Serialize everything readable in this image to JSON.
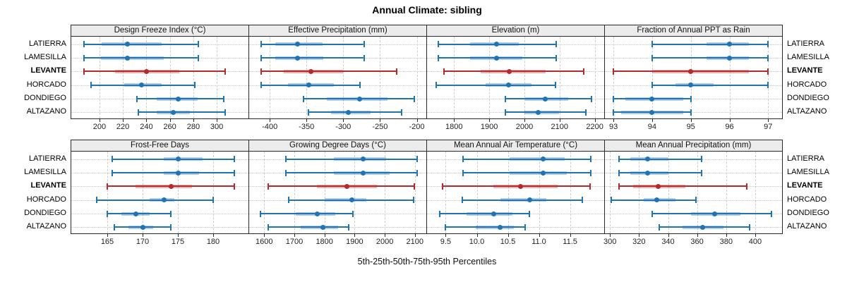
{
  "title": "Annual Climate: sibling",
  "caption": "5th-25th-50th-75th-95th Percentiles",
  "chart_data": {
    "type": "dotplot-percentile-intervals",
    "title": "Annual Climate: sibling",
    "xlabel": "5th-25th-50th-75th-95th Percentiles",
    "percentile_labels": [
      "5th",
      "25th",
      "50th",
      "75th",
      "95th"
    ],
    "sites": [
      "LATIERRA",
      "LAMESILLA",
      "LEVANTE",
      "HORCADO",
      "DONDIEGO",
      "ALTAZANO"
    ],
    "highlight_site": "LEVANTE",
    "colors": {
      "normal": "#1f74b4",
      "normal_band": "rgba(31,116,180,0.35)",
      "highlight": "#b52b2b",
      "highlight_band": "rgba(181,43,43,0.35)",
      "strip_bg": "#ececec",
      "grid": "#cdcdcd"
    },
    "legend_position": "none",
    "grid": true,
    "panels": [
      {
        "id": "design-freeze-index",
        "label": "Design Freeze Index (°C)",
        "row": 0,
        "col": 0,
        "xlim": [
          176,
          327
        ],
        "ticks": [
          200,
          220,
          240,
          260,
          280,
          300
        ],
        "tick_labels": [
          "200",
          "220",
          "240",
          "260",
          "280",
          "300"
        ],
        "series": {
          "LATIERRA": [
            187,
            202,
            224,
            253,
            284
          ],
          "LAMESILLA": [
            187,
            201,
            224,
            255,
            284
          ],
          "LEVANTE": [
            187,
            213,
            240,
            268,
            307
          ],
          "HORCADO": [
            193,
            221,
            236,
            253,
            281
          ],
          "DONDIEGO": [
            232,
            249,
            267,
            284,
            306
          ],
          "ALTAZANO": [
            233,
            249,
            263,
            277,
            307
          ]
        }
      },
      {
        "id": "effective-precipitation",
        "label": "Effective Precipitation (mm)",
        "row": 0,
        "col": 1,
        "xlim": [
          -428,
          -187
        ],
        "ticks": [
          -400,
          -350,
          -300,
          -250,
          -200
        ],
        "tick_labels": [
          "-400",
          "-350",
          "-300",
          "-250",
          "-200"
        ],
        "series": {
          "LATIERRA": [
            -412,
            -393,
            -362,
            -328,
            -272
          ],
          "LAMESILLA": [
            -412,
            -393,
            -362,
            -327,
            -272
          ],
          "LEVANTE": [
            -412,
            -381,
            -344,
            -300,
            -227
          ],
          "HORCADO": [
            -412,
            -375,
            -347,
            -313,
            -277
          ],
          "DONDIEGO": [
            -354,
            -322,
            -278,
            -240,
            -203
          ],
          "ALTAZANO": [
            -347,
            -317,
            -293,
            -263,
            -221
          ]
        }
      },
      {
        "id": "elevation",
        "label": "Elevation (m)",
        "row": 0,
        "col": 2,
        "xlim": [
          1723,
          2227
        ],
        "ticks": [
          1800,
          1900,
          2000,
          2100,
          2200
        ],
        "tick_labels": [
          "1800",
          "1900",
          "2000",
          "2100",
          "2200"
        ],
        "series": {
          "LATIERRA": [
            1755,
            1845,
            1920,
            1985,
            2090
          ],
          "LAMESILLA": [
            1755,
            1845,
            1920,
            1995,
            2090
          ],
          "LEVANTE": [
            1772,
            1875,
            1957,
            2060,
            2168
          ],
          "HORCADO": [
            1750,
            1890,
            1955,
            2020,
            2088
          ],
          "DONDIEGO": [
            1945,
            2002,
            2060,
            2125,
            2190
          ],
          "ALTAZANO": [
            1945,
            2000,
            2040,
            2098,
            2175
          ]
        }
      },
      {
        "id": "fraction-ppt-rain",
        "label": "Fraction of Annual PPT as Rain",
        "row": 0,
        "col": 3,
        "xlim": [
          92.78,
          97.36
        ],
        "ticks": [
          93,
          94,
          95,
          96,
          97
        ],
        "tick_labels": [
          "93",
          "94",
          "95",
          "96",
          "97"
        ],
        "series": {
          "LATIERRA": [
            94,
            95.4,
            96,
            96.5,
            97
          ],
          "LAMESILLA": [
            94,
            95.4,
            96,
            96.5,
            97
          ],
          "LEVANTE": [
            93,
            94,
            95,
            96.5,
            97
          ],
          "HORCADO": [
            94,
            94.6,
            95,
            95.6,
            97
          ],
          "DONDIEGO": [
            93,
            93.3,
            94,
            94.8,
            95
          ],
          "ALTAZANO": [
            93,
            93.2,
            94,
            94.8,
            95
          ]
        }
      },
      {
        "id": "frost-free-days",
        "label": "Frost-Free Days",
        "row": 1,
        "col": 0,
        "xlim": [
          159.9,
          185
        ],
        "ticks": [
          165,
          170,
          175,
          180
        ],
        "tick_labels": [
          "165",
          "170",
          "175",
          "180"
        ],
        "series": {
          "LATIERRA": [
            165.7,
            173,
            175,
            178.5,
            183
          ],
          "LAMESILLA": [
            165.7,
            173,
            175,
            178,
            183
          ],
          "LEVANTE": [
            165,
            169,
            174,
            177,
            183
          ],
          "HORCADO": [
            163.5,
            171,
            173,
            174.5,
            180
          ],
          "DONDIEGO": [
            165,
            167,
            169,
            171,
            174
          ],
          "ALTAZANO": [
            166,
            168,
            170,
            171.5,
            174
          ]
        }
      },
      {
        "id": "growing-degree-days",
        "label": "Growing Degree Days (°C)",
        "row": 1,
        "col": 1,
        "xlim": [
          1550,
          2138
        ],
        "ticks": [
          1600,
          1700,
          1800,
          1900,
          2000,
          2100
        ],
        "tick_labels": [
          "1600",
          "1700",
          "1800",
          "1900",
          "2000",
          "2100"
        ],
        "series": {
          "LATIERRA": [
            1672,
            1830,
            1928,
            2005,
            2108
          ],
          "LAMESILLA": [
            1672,
            1830,
            1928,
            2015,
            2108
          ],
          "LEVANTE": [
            1612,
            1775,
            1875,
            1975,
            2098
          ],
          "HORCADO": [
            1680,
            1800,
            1890,
            1940,
            2095
          ],
          "DONDIEGO": [
            1588,
            1705,
            1775,
            1835,
            1895
          ],
          "ALTAZANO": [
            1612,
            1720,
            1795,
            1845,
            1880
          ]
        }
      },
      {
        "id": "mean-annual-air-temperature",
        "label": "Mean Annual Air Temperature (°C)",
        "row": 1,
        "col": 2,
        "xlim": [
          9.2,
          12.05
        ],
        "ticks": [
          9.5,
          10.0,
          10.5,
          11.0,
          11.5
        ],
        "tick_labels": [
          "9.5",
          "10.0",
          "10.5",
          "11.0",
          "11.5"
        ],
        "series": {
          "LATIERRA": [
            9.78,
            10.53,
            11.07,
            11.42,
            11.83
          ],
          "LAMESILLA": [
            9.78,
            10.53,
            11.07,
            11.45,
            11.83
          ],
          "LEVANTE": [
            9.45,
            10.27,
            10.7,
            11.3,
            11.82
          ],
          "HORCADO": [
            9.77,
            10.38,
            10.85,
            11.12,
            11.7
          ],
          "DONDIEGO": [
            9.4,
            9.83,
            10.27,
            10.57,
            10.85
          ],
          "ALTAZANO": [
            9.5,
            9.98,
            10.37,
            10.6,
            10.78
          ]
        }
      },
      {
        "id": "mean-annual-precipitation",
        "label": "Mean Annual Precipitation (mm)",
        "row": 1,
        "col": 3,
        "xlim": [
          296.5,
          418.5
        ],
        "ticks": [
          300,
          320,
          340,
          360,
          380,
          400
        ],
        "tick_labels": [
          "300",
          "320",
          "340",
          "360",
          "380",
          "400"
        ],
        "series": {
          "LATIERRA": [
            306,
            314,
            326,
            340,
            363
          ],
          "LAMESILLA": [
            306,
            314,
            326,
            340,
            363
          ],
          "LEVANTE": [
            306,
            316,
            333,
            352,
            394
          ],
          "HORCADO": [
            301,
            323,
            332,
            345,
            359
          ],
          "DONDIEGO": [
            329,
            356,
            372,
            390,
            411
          ],
          "ALTAZANO": [
            334,
            350,
            364,
            378,
            396
          ]
        }
      }
    ]
  }
}
